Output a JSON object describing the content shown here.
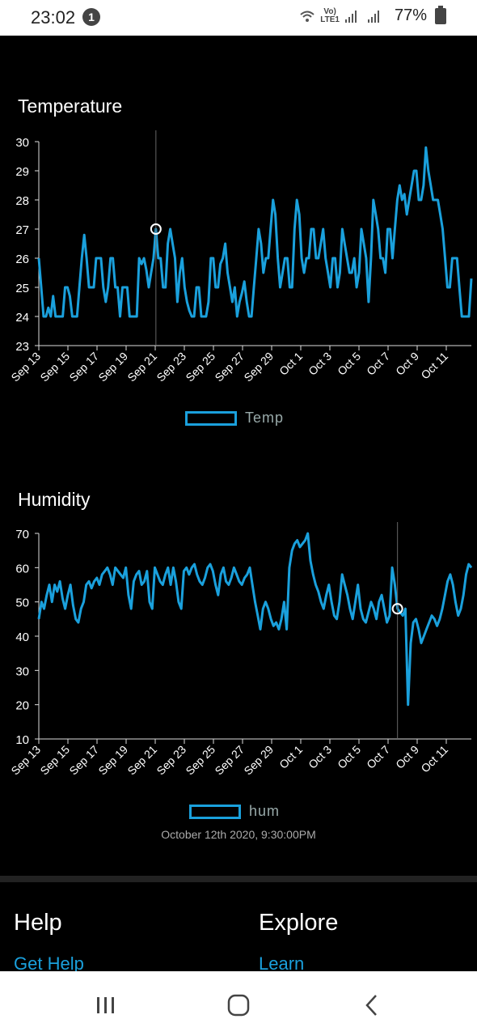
{
  "status_bar": {
    "time": "23:02",
    "notification_count": "1",
    "network_top": "Vo)",
    "network_bottom": "LTE1",
    "battery": "77%"
  },
  "temperature": {
    "title": "Temperature",
    "legend": "Temp",
    "chart_data": {
      "type": "line",
      "ylim": [
        23,
        30
      ],
      "yticks": [
        "30",
        "29",
        "28",
        "27",
        "26",
        "25",
        "24",
        "23"
      ],
      "xticks": [
        "Sep 13",
        "Sep 15",
        "Sep 17",
        "Sep 19",
        "Sep 21",
        "Sep 23",
        "Sep 25",
        "Sep 27",
        "Sep 29",
        "Oct 1",
        "Oct 3",
        "Oct 5",
        "Oct 7",
        "Oct 9",
        "Oct 11"
      ],
      "series": [
        {
          "name": "Temp",
          "values": [
            26,
            25,
            24,
            24,
            24.3,
            24,
            24.7,
            24,
            24,
            24,
            24,
            25,
            25,
            24.7,
            24,
            24,
            24,
            25,
            26,
            26.8,
            26,
            25,
            25,
            25,
            26,
            26,
            26,
            25,
            24.5,
            25,
            26,
            26,
            25,
            25,
            24,
            25,
            25,
            25,
            24,
            24,
            24,
            24,
            26,
            25.8,
            26,
            25.6,
            25,
            25.5,
            26,
            27,
            26,
            26,
            25,
            25,
            26.5,
            27,
            26.5,
            26,
            24.5,
            25.5,
            26,
            25,
            24.5,
            24.2,
            24,
            24,
            25,
            25,
            24,
            24,
            24,
            24.5,
            26,
            26,
            25,
            25,
            25.8,
            26,
            26.5,
            25.5,
            25,
            24.5,
            25,
            24,
            24.5,
            24.8,
            25.2,
            24.5,
            24,
            24,
            25,
            26,
            27,
            26.5,
            25.5,
            26,
            26,
            27,
            28,
            27.5,
            26,
            25,
            25.5,
            26,
            26,
            25,
            25,
            27,
            28,
            27.5,
            26,
            25.5,
            26,
            26,
            27,
            27,
            26,
            26,
            26.5,
            27,
            26,
            25.5,
            25,
            26,
            26,
            25,
            25.5,
            27,
            26.5,
            26,
            25.5,
            25.5,
            26,
            25,
            25.5,
            27,
            26.5,
            26,
            24.5,
            26,
            28,
            27.5,
            27,
            26,
            26,
            25.5,
            27,
            27,
            26,
            27,
            28,
            28.5,
            28,
            28.2,
            27.5,
            28,
            28.5,
            29,
            29,
            28,
            28,
            28.5,
            29.8,
            29,
            28.5,
            28,
            28,
            28,
            27.5,
            27,
            26,
            25,
            25,
            26,
            26,
            26,
            25,
            24,
            24,
            24,
            24,
            25.3
          ]
        }
      ]
    }
  },
  "humidity": {
    "title": "Humidity",
    "legend": "hum",
    "chart_data": {
      "type": "line",
      "ylim": [
        10,
        70
      ],
      "yticks": [
        "70",
        "60",
        "50",
        "40",
        "30",
        "20",
        "10"
      ],
      "xticks": [
        "Sep 13",
        "Sep 15",
        "Sep 17",
        "Sep 19",
        "Sep 21",
        "Sep 23",
        "Sep 25",
        "Sep 27",
        "Sep 29",
        "Oct 1",
        "Oct 3",
        "Oct 5",
        "Oct 7",
        "Oct 9",
        "Oct 11"
      ],
      "series": [
        {
          "name": "hum",
          "values": [
            45,
            50,
            48,
            52,
            55,
            50,
            55,
            53,
            56,
            51,
            48,
            52,
            55,
            49,
            45,
            44,
            48,
            50,
            55,
            56,
            54,
            56,
            57,
            55,
            58,
            59,
            60,
            58,
            55,
            60,
            59,
            58,
            57,
            60,
            52,
            48,
            56,
            58,
            59,
            55,
            56,
            59,
            50,
            48,
            60,
            58,
            56,
            55,
            58,
            60,
            55,
            60,
            56,
            50,
            48,
            59,
            60,
            58,
            60,
            61,
            58,
            56,
            55,
            57,
            60,
            61,
            59,
            55,
            52,
            58,
            60,
            56,
            55,
            57,
            60,
            58,
            56,
            55,
            57,
            58,
            60,
            55,
            50,
            46,
            42,
            48,
            50,
            48,
            45,
            43,
            44,
            42,
            45,
            50,
            42,
            60,
            65,
            67,
            68,
            66,
            67,
            68,
            70,
            62,
            58,
            55,
            53,
            50,
            48,
            52,
            55,
            50,
            46,
            45,
            50,
            58,
            55,
            52,
            48,
            45,
            50,
            55,
            48,
            45,
            44,
            47,
            50,
            48,
            45,
            50,
            52,
            48,
            44,
            46,
            60,
            55,
            48,
            47,
            46,
            48,
            20,
            38,
            44,
            45,
            42,
            38,
            40,
            42,
            44,
            46,
            45,
            43,
            45,
            48,
            52,
            56,
            58,
            55,
            50,
            46,
            48,
            52,
            58,
            61,
            60
          ]
        }
      ]
    },
    "timestamp": "October 12th 2020, 9:30:00PM"
  },
  "footer": {
    "help_heading": "Help",
    "help_link": "Get Help",
    "explore_heading": "Explore",
    "explore_link": "Learn"
  },
  "colors": {
    "line": "#1aa0dc",
    "background": "#000000"
  },
  "icons": [
    "notification-badge",
    "wifi-icon",
    "signal-icon",
    "battery-icon",
    "recents-icon",
    "home-icon",
    "back-icon"
  ]
}
